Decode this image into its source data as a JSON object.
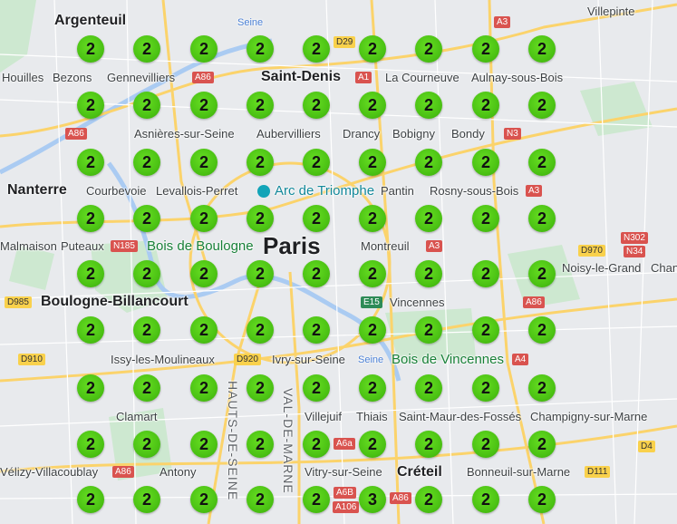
{
  "map": {
    "cluster_color": "#4cc314",
    "clusters": [
      [
        2,
        2,
        2,
        2,
        2,
        2,
        2,
        2,
        2
      ],
      [
        2,
        2,
        2,
        2,
        2,
        2,
        2,
        2,
        2
      ],
      [
        2,
        2,
        2,
        2,
        2,
        2,
        2,
        2,
        2
      ],
      [
        2,
        2,
        2,
        2,
        2,
        2,
        2,
        2,
        2
      ],
      [
        2,
        2,
        2,
        2,
        2,
        2,
        2,
        2,
        2
      ],
      [
        2,
        2,
        2,
        2,
        2,
        2,
        2,
        2,
        2
      ],
      [
        2,
        2,
        2,
        2,
        2,
        2,
        2,
        2,
        2
      ],
      [
        2,
        2,
        2,
        2,
        2,
        2,
        2,
        2,
        2
      ],
      [
        2,
        2,
        2,
        2,
        2,
        3,
        2,
        2,
        2
      ]
    ],
    "places": {
      "villepinte": "Villepinte",
      "argenteuil": "Argenteuil",
      "saint_denis": "Saint-Denis",
      "aulnay": "Aulnay-sous-Bois",
      "houilles": "Houilles",
      "bezons": "Bezons",
      "gennevilliers": "Gennevilliers",
      "la_courneuve": "La Courneuve",
      "drancy": "Drancy",
      "asnieres": "Asnières-sur-Seine",
      "aubervilliers": "Aubervilliers",
      "bobigny": "Bobigny",
      "bondy": "Bondy",
      "courbevoie": "Courbevoie",
      "pantin": "Pantin",
      "nanterre": "Nanterre",
      "levallois": "Levallois-Perret",
      "puteaux": "Puteaux",
      "malmaison": "Malmaison",
      "arc": "Arc de Triomphe",
      "rosny": "Rosny-sous-Bois",
      "montreuil": "Montreuil",
      "bois_boulogne": "Bois de Boulogne",
      "paris": "Paris",
      "vincennes": "Vincennes",
      "noisy": "Noisy-le-Grand",
      "chan": "Chan",
      "boulogne": "Boulogne-Billancourt",
      "bois_vincennes": "Bois de Vincennes",
      "issy": "Issy-les-Moulineaux",
      "champigny": "Champigny-sur-Marne",
      "ivry": "Ivry-sur-Seine",
      "saint_maur": "Saint-Maur-des-Fossés",
      "clamart": "Clamart",
      "villejuif": "Villejuif",
      "vitry": "Vitry-sur-Seine",
      "creteil": "Créteil",
      "velizy": "Vélizy-Villacoublay",
      "bonneuil": "Bonneuil-sur-Marne",
      "antony": "Antony",
      "thiais": "Thiais",
      "hauts_de_seine": "HAUTS-DE-SEINE",
      "val_de_marne": "VAL-DE-MARNE",
      "seine1": "Seine",
      "seine2": "Seine"
    },
    "roads": [
      "D29",
      "A86",
      "A1",
      "A3",
      "A86",
      "N3",
      "A3",
      "N185",
      "A3",
      "D970",
      "N302",
      "N34",
      "D985",
      "E15",
      "A86",
      "A4",
      "D920",
      "D910",
      "D4",
      "D111",
      "A86",
      "A6a",
      "A6B",
      "A106",
      "A86"
    ]
  }
}
